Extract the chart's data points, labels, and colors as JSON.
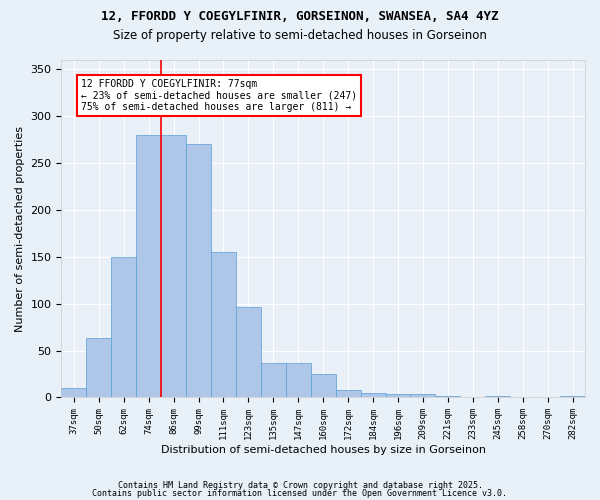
{
  "title_line1": "12, FFORDD Y COEGYLFINIR, GORSEINON, SWANSEA, SA4 4YZ",
  "title_line2": "Size of property relative to semi-detached houses in Gorseinon",
  "xlabel": "Distribution of semi-detached houses by size in Gorseinon",
  "ylabel": "Number of semi-detached properties",
  "categories": [
    "37sqm",
    "50sqm",
    "62sqm",
    "74sqm",
    "86sqm",
    "99sqm",
    "111sqm",
    "123sqm",
    "135sqm",
    "147sqm",
    "160sqm",
    "172sqm",
    "184sqm",
    "196sqm",
    "209sqm",
    "221sqm",
    "233sqm",
    "245sqm",
    "258sqm",
    "270sqm",
    "282sqm"
  ],
  "values": [
    10,
    63,
    150,
    280,
    280,
    270,
    155,
    97,
    37,
    37,
    25,
    8,
    5,
    4,
    4,
    2,
    0,
    2,
    0,
    0,
    2
  ],
  "bar_color": "#aec6e8",
  "bar_edge_color": "#5a9fd4",
  "property_size_label": "12 FFORDD Y COEGYLFINIR: 77sqm",
  "pct_smaller": 23,
  "count_smaller": 247,
  "pct_larger": 75,
  "count_larger": 811,
  "vline_position": 3.5,
  "vline_color": "red",
  "ylim": [
    0,
    360
  ],
  "yticks": [
    0,
    50,
    100,
    150,
    200,
    250,
    300,
    350
  ],
  "annotation_box_color": "white",
  "annotation_box_edge": "red",
  "footer_line1": "Contains HM Land Registry data © Crown copyright and database right 2025.",
  "footer_line2": "Contains public sector information licensed under the Open Government Licence v3.0.",
  "background_color": "#e8f0f8",
  "plot_bg_color": "#eaf0f8"
}
